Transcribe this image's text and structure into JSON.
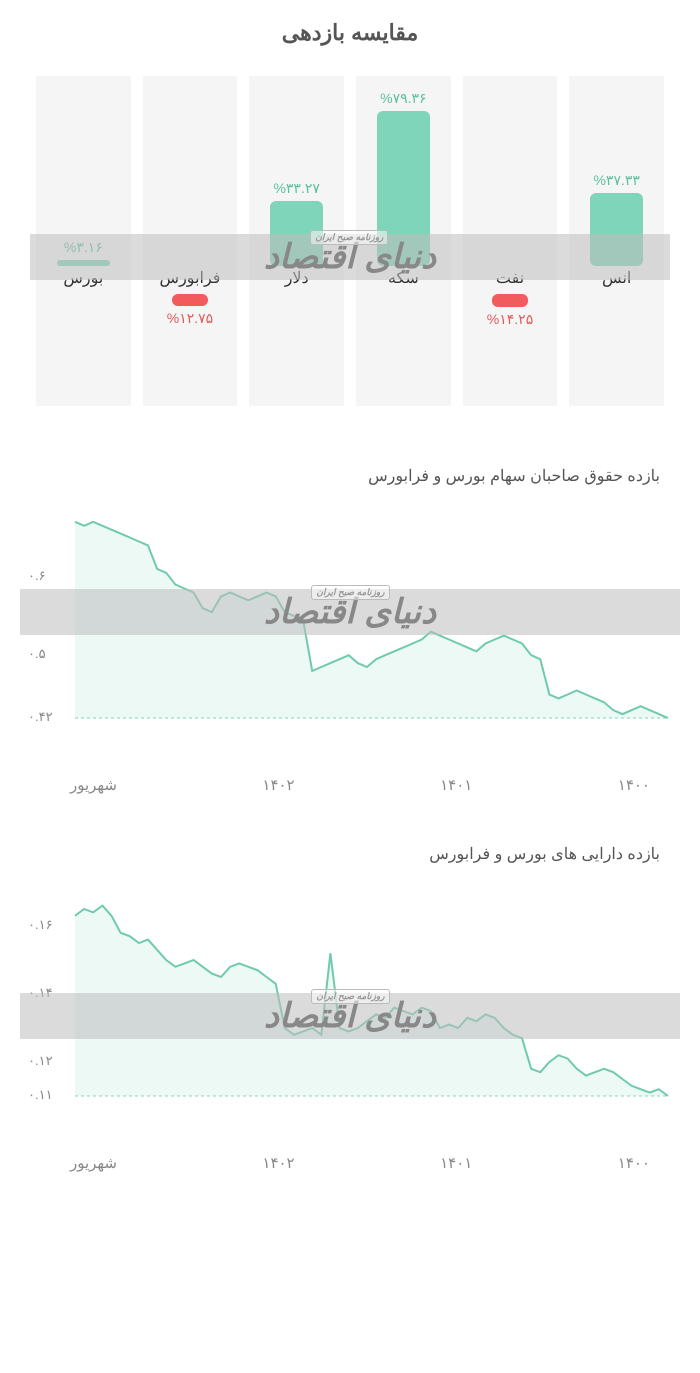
{
  "colors": {
    "positive": "#7fd5b9",
    "negative": "#f15b5b",
    "positive_text": "#5bbfa0",
    "negative_text": "#e05a5a",
    "bar_bg": "#f5f5f5",
    "line": "#6fcbaa",
    "area": "#7fd5b9",
    "axis_text": "#888888",
    "dotted": "#7fd5b9"
  },
  "barchart": {
    "title": "مقایسه بازدهی",
    "max_abs": 79.36,
    "baseline_pct": 58,
    "items": [
      {
        "name": "بورس",
        "value": 3.16,
        "display": "%۳.۱۶"
      },
      {
        "name": "فرابورس",
        "value": -12.75,
        "display": "%۱۲.۷۵"
      },
      {
        "name": "دلار",
        "value": 33.27,
        "display": "%۳۳.۲۷"
      },
      {
        "name": "سکه",
        "value": 79.36,
        "display": "%۷۹.۳۶"
      },
      {
        "name": "نفت",
        "value": -14.25,
        "display": "%۱۴.۲۵"
      },
      {
        "name": "انس",
        "value": 37.33,
        "display": "%۳۷.۳۳"
      }
    ],
    "watermark_main": "دنیای اقتصاد",
    "watermark_sub": "روزنامه صبح ایران",
    "watermark_top_pct": 48
  },
  "line1": {
    "title": "بازده حقوق صاحبان سهام بورس و فرابورس",
    "ymin": 0.42,
    "ymax": 0.68,
    "yticks": [
      {
        "v": 0.42,
        "label": "۰.۴۲"
      },
      {
        "v": 0.5,
        "label": "۰.۵"
      },
      {
        "v": 0.6,
        "label": "۰.۶"
      }
    ],
    "xticks": [
      "۱۴۰۰",
      "۱۴۰۱",
      "۱۴۰۲",
      "شهریور"
    ],
    "points": [
      0.67,
      0.665,
      0.67,
      0.665,
      0.66,
      0.655,
      0.65,
      0.645,
      0.64,
      0.61,
      0.605,
      0.59,
      0.585,
      0.58,
      0.56,
      0.555,
      0.575,
      0.58,
      0.575,
      0.57,
      0.575,
      0.58,
      0.575,
      0.555,
      0.55,
      0.545,
      0.48,
      0.485,
      0.49,
      0.495,
      0.5,
      0.49,
      0.485,
      0.495,
      0.5,
      0.505,
      0.51,
      0.515,
      0.52,
      0.53,
      0.525,
      0.52,
      0.515,
      0.51,
      0.505,
      0.515,
      0.52,
      0.525,
      0.52,
      0.515,
      0.5,
      0.495,
      0.45,
      0.445,
      0.45,
      0.455,
      0.45,
      0.445,
      0.44,
      0.43,
      0.425,
      0.43,
      0.435,
      0.43,
      0.425,
      0.42
    ],
    "watermark_top_pct": 32
  },
  "line2": {
    "title": "بازده دارایی های بورس و فرابورس",
    "ymin": 0.11,
    "ymax": 0.17,
    "yticks": [
      {
        "v": 0.11,
        "label": "۰.۱۱"
      },
      {
        "v": 0.12,
        "label": "۰.۱۲"
      },
      {
        "v": 0.14,
        "label": "۰.۱۴"
      },
      {
        "v": 0.16,
        "label": "۰.۱۶"
      }
    ],
    "xticks": [
      "۱۴۰۰",
      "۱۴۰۱",
      "۱۴۰۲",
      "شهریور"
    ],
    "points": [
      0.163,
      0.165,
      0.164,
      0.166,
      0.163,
      0.158,
      0.157,
      0.155,
      0.156,
      0.153,
      0.15,
      0.148,
      0.149,
      0.15,
      0.148,
      0.146,
      0.145,
      0.148,
      0.149,
      0.148,
      0.147,
      0.145,
      0.143,
      0.13,
      0.128,
      0.129,
      0.13,
      0.128,
      0.152,
      0.13,
      0.129,
      0.13,
      0.132,
      0.134,
      0.133,
      0.136,
      0.135,
      0.134,
      0.136,
      0.135,
      0.13,
      0.131,
      0.13,
      0.133,
      0.132,
      0.134,
      0.133,
      0.13,
      0.128,
      0.127,
      0.118,
      0.117,
      0.12,
      0.122,
      0.121,
      0.118,
      0.116,
      0.117,
      0.118,
      0.117,
      0.115,
      0.113,
      0.112,
      0.111,
      0.112,
      0.11
    ],
    "watermark_top_pct": 42
  }
}
